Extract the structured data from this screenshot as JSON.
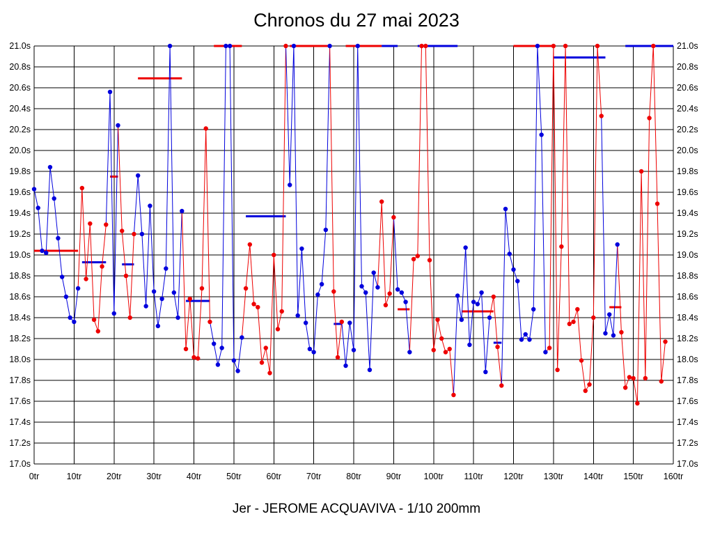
{
  "chart_data": {
    "type": "line",
    "title": "Chronos du 27 mai 2023",
    "caption": "Jer - JEROME ACQUAVIVA - 1/10 200mm",
    "xlabel": "",
    "ylabel": "",
    "xlim": [
      0,
      160
    ],
    "ylim": [
      17.0,
      21.0
    ],
    "x_ticks": [
      "0tr",
      "10tr",
      "20tr",
      "30tr",
      "40tr",
      "50tr",
      "60tr",
      "70tr",
      "80tr",
      "90tr",
      "100tr",
      "110tr",
      "120tr",
      "130tr",
      "140tr",
      "150tr",
      "160tr"
    ],
    "y_ticks": [
      "17.0s",
      "17.2s",
      "17.4s",
      "17.6s",
      "17.8s",
      "18.0s",
      "18.2s",
      "18.4s",
      "18.6s",
      "18.8s",
      "19.0s",
      "19.2s",
      "19.4s",
      "19.6s",
      "19.8s",
      "20.0s",
      "20.2s",
      "20.4s",
      "20.6s",
      "20.8s",
      "21.0s"
    ],
    "grid": true,
    "colors": {
      "blue": "#0000dd",
      "red": "#ee0000",
      "grid": "#000000"
    },
    "series": [
      {
        "color": "blue",
        "points": [
          [
            0,
            19.63
          ],
          [
            1,
            19.45
          ],
          [
            2,
            19.04
          ],
          [
            3,
            19.02
          ],
          [
            4,
            19.84
          ],
          [
            5,
            19.54
          ],
          [
            6,
            19.16
          ],
          [
            7,
            18.79
          ],
          [
            8,
            18.6
          ],
          [
            9,
            18.4
          ],
          [
            10,
            18.36
          ],
          [
            11,
            18.68
          ]
        ]
      },
      {
        "color": "red",
        "points": [
          [
            12,
            19.64
          ],
          [
            13,
            18.77
          ],
          [
            14,
            19.3
          ],
          [
            15,
            18.38
          ],
          [
            16,
            18.27
          ],
          [
            17,
            18.89
          ],
          [
            18,
            19.29
          ]
        ]
      },
      {
        "color": "blue",
        "points": [
          [
            19,
            20.56
          ],
          [
            20,
            18.44
          ],
          [
            21,
            20.24
          ]
        ]
      },
      {
        "color": "red",
        "points": [
          [
            22,
            19.23
          ],
          [
            23,
            18.8
          ],
          [
            24,
            18.4
          ],
          [
            25,
            19.2
          ]
        ]
      },
      {
        "color": "blue",
        "points": [
          [
            26,
            19.76
          ],
          [
            27,
            19.2
          ],
          [
            28,
            18.51
          ],
          [
            29,
            19.47
          ],
          [
            30,
            18.65
          ],
          [
            31,
            18.32
          ],
          [
            32,
            18.58
          ],
          [
            33,
            18.87
          ],
          [
            34,
            21.0
          ],
          [
            35,
            18.64
          ],
          [
            36,
            18.4
          ],
          [
            37,
            19.42
          ]
        ]
      },
      {
        "color": "red",
        "points": [
          [
            38,
            18.1
          ],
          [
            39,
            18.58
          ],
          [
            40,
            18.02
          ],
          [
            41,
            18.01
          ],
          [
            42,
            18.68
          ],
          [
            43,
            20.21
          ],
          [
            44,
            18.36
          ]
        ]
      },
      {
        "color": "blue",
        "points": [
          [
            45,
            18.15
          ],
          [
            46,
            17.95
          ],
          [
            47,
            18.11
          ],
          [
            48,
            21.0
          ],
          [
            49,
            21.0
          ],
          [
            50,
            17.99
          ],
          [
            51,
            17.89
          ],
          [
            52,
            18.21
          ]
        ]
      },
      {
        "color": "red",
        "points": [
          [
            53,
            18.68
          ],
          [
            54,
            19.1
          ],
          [
            55,
            18.53
          ],
          [
            56,
            18.5
          ],
          [
            57,
            17.97
          ],
          [
            58,
            18.11
          ],
          [
            59,
            17.87
          ],
          [
            60,
            19.0
          ],
          [
            61,
            18.29
          ],
          [
            62,
            18.46
          ],
          [
            63,
            21.0
          ]
        ]
      },
      {
        "color": "blue",
        "points": [
          [
            64,
            19.67
          ],
          [
            65,
            21.0
          ],
          [
            66,
            18.42
          ],
          [
            67,
            19.06
          ],
          [
            68,
            18.35
          ],
          [
            69,
            18.1
          ],
          [
            70,
            18.07
          ],
          [
            71,
            18.62
          ],
          [
            72,
            18.72
          ],
          [
            73,
            19.24
          ],
          [
            74,
            21.0
          ]
        ]
      },
      {
        "color": "red",
        "points": [
          [
            75,
            18.65
          ],
          [
            76,
            18.02
          ],
          [
            77,
            18.36
          ]
        ]
      },
      {
        "color": "blue",
        "points": [
          [
            78,
            17.94
          ],
          [
            79,
            18.35
          ],
          [
            80,
            18.09
          ],
          [
            81,
            21.0
          ],
          [
            82,
            18.7
          ],
          [
            83,
            18.64
          ],
          [
            84,
            17.9
          ],
          [
            85,
            18.83
          ],
          [
            86,
            18.69
          ]
        ]
      },
      {
        "color": "red",
        "points": [
          [
            87,
            19.51
          ],
          [
            88,
            18.52
          ],
          [
            89,
            18.63
          ],
          [
            90,
            19.36
          ]
        ]
      },
      {
        "color": "blue",
        "points": [
          [
            91,
            18.67
          ],
          [
            92,
            18.64
          ],
          [
            93,
            18.55
          ],
          [
            94,
            18.07
          ]
        ]
      },
      {
        "color": "red",
        "points": [
          [
            95,
            18.96
          ],
          [
            96,
            18.99
          ],
          [
            97,
            21.0
          ],
          [
            98,
            21.0
          ],
          [
            99,
            18.95
          ],
          [
            100,
            18.09
          ],
          [
            101,
            18.38
          ],
          [
            102,
            18.2
          ],
          [
            103,
            18.07
          ],
          [
            104,
            18.1
          ],
          [
            105,
            17.66
          ]
        ]
      },
      {
        "color": "blue",
        "points": [
          [
            106,
            18.61
          ],
          [
            107,
            18.38
          ],
          [
            108,
            19.07
          ],
          [
            109,
            18.14
          ],
          [
            110,
            18.55
          ],
          [
            111,
            18.53
          ],
          [
            112,
            18.64
          ],
          [
            113,
            17.88
          ],
          [
            114,
            18.4
          ]
        ]
      },
      {
        "color": "red",
        "points": [
          [
            115,
            18.6
          ],
          [
            116,
            18.12
          ],
          [
            117,
            17.75
          ]
        ]
      },
      {
        "color": "blue",
        "points": [
          [
            118,
            19.44
          ],
          [
            119,
            19.01
          ],
          [
            120,
            18.86
          ],
          [
            121,
            18.75
          ],
          [
            122,
            18.19
          ],
          [
            123,
            18.24
          ],
          [
            124,
            18.19
          ],
          [
            125,
            18.48
          ],
          [
            126,
            21.0
          ],
          [
            127,
            20.15
          ],
          [
            128,
            18.07
          ]
        ]
      },
      {
        "color": "red",
        "points": [
          [
            129,
            18.11
          ],
          [
            130,
            21.0
          ],
          [
            131,
            17.9
          ],
          [
            132,
            19.08
          ],
          [
            133,
            21.0
          ],
          [
            134,
            18.34
          ],
          [
            135,
            18.36
          ],
          [
            136,
            18.48
          ],
          [
            137,
            17.99
          ],
          [
            138,
            17.7
          ],
          [
            139,
            17.76
          ],
          [
            140,
            18.4
          ],
          [
            141,
            21.0
          ],
          [
            142,
            20.33
          ]
        ]
      },
      {
        "color": "blue",
        "points": [
          [
            143,
            18.25
          ],
          [
            144,
            18.43
          ],
          [
            145,
            18.23
          ],
          [
            146,
            19.1
          ]
        ]
      },
      {
        "color": "red",
        "points": [
          [
            147,
            18.26
          ],
          [
            148,
            17.73
          ],
          [
            149,
            17.83
          ],
          [
            150,
            17.82
          ],
          [
            151,
            17.58
          ],
          [
            152,
            19.8
          ],
          [
            153,
            17.82
          ],
          [
            154,
            20.31
          ],
          [
            155,
            21.0
          ],
          [
            156,
            19.49
          ],
          [
            157,
            17.79
          ],
          [
            158,
            18.17
          ]
        ]
      }
    ],
    "averages": [
      {
        "color": "red",
        "x0": 0,
        "x1": 11,
        "y": 19.04
      },
      {
        "color": "blue",
        "x0": 12,
        "x1": 18,
        "y": 18.93
      },
      {
        "color": "red",
        "x0": 19,
        "x1": 21,
        "y": 19.75
      },
      {
        "color": "blue",
        "x0": 22,
        "x1": 25,
        "y": 18.91
      },
      {
        "color": "red",
        "x0": 26,
        "x1": 37,
        "y": 20.69
      },
      {
        "color": "blue",
        "x0": 38,
        "x1": 44,
        "y": 18.56
      },
      {
        "color": "red",
        "x0": 45,
        "x1": 52,
        "y": 21.0
      },
      {
        "color": "blue",
        "x0": 53,
        "x1": 63,
        "y": 19.37
      },
      {
        "color": "red",
        "x0": 64,
        "x1": 74,
        "y": 21.0
      },
      {
        "color": "blue",
        "x0": 75,
        "x1": 77,
        "y": 18.34
      },
      {
        "color": "red",
        "x0": 78,
        "x1": 87,
        "y": 21.0
      },
      {
        "color": "blue",
        "x0": 87,
        "x1": 91,
        "y": 21.0
      },
      {
        "color": "red",
        "x0": 91,
        "x1": 94,
        "y": 18.48
      },
      {
        "color": "blue",
        "x0": 96,
        "x1": 106,
        "y": 21.0
      },
      {
        "color": "red",
        "x0": 107,
        "x1": 115,
        "y": 18.46
      },
      {
        "color": "blue",
        "x0": 115,
        "x1": 117,
        "y": 18.16
      },
      {
        "color": "red",
        "x0": 120,
        "x1": 130,
        "y": 21.0
      },
      {
        "color": "blue",
        "x0": 130,
        "x1": 143,
        "y": 20.89
      },
      {
        "color": "red",
        "x0": 144,
        "x1": 147,
        "y": 18.5
      },
      {
        "color": "blue",
        "x0": 148,
        "x1": 160,
        "y": 21.0
      }
    ]
  }
}
